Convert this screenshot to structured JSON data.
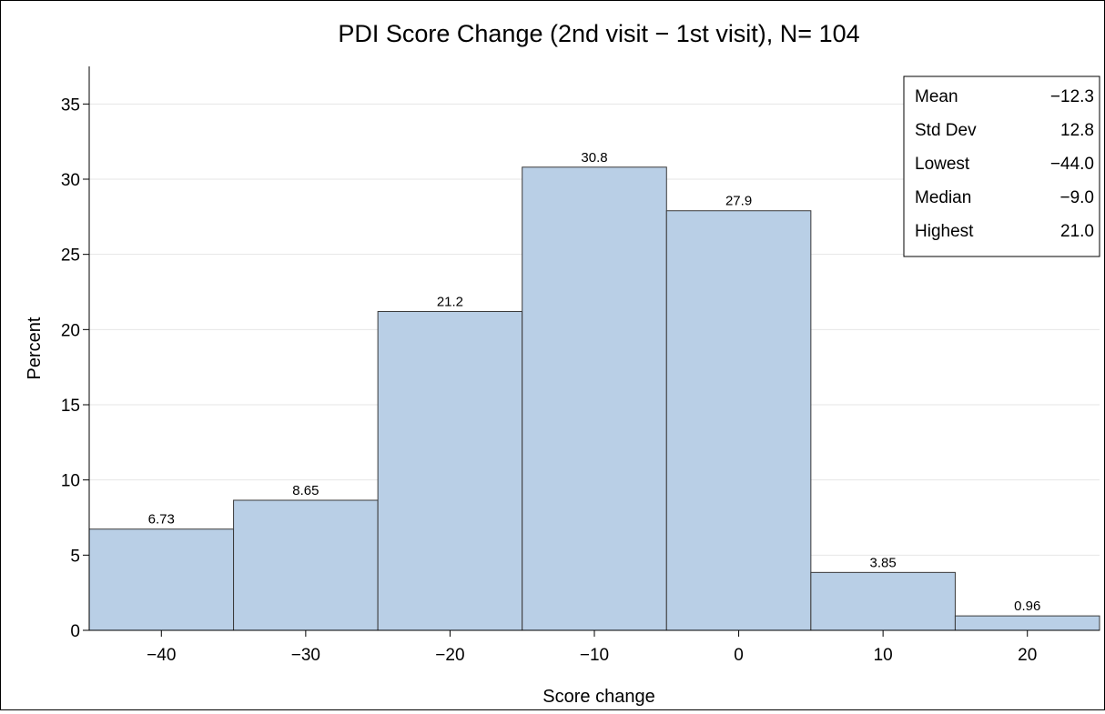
{
  "chart_data": {
    "type": "bar",
    "subtype": "histogram",
    "title": "PDI Score Change (2nd visit − 1st visit), N= 104",
    "xlabel": "Score change",
    "ylabel": "Percent",
    "xlim": [
      -45,
      25
    ],
    "ylim": [
      0,
      37.5
    ],
    "bin_width": 10,
    "x_ticks": [
      -40,
      -30,
      -20,
      -10,
      0,
      10,
      20
    ],
    "x_tick_labels": [
      "−40",
      "−30",
      "−20",
      "−10",
      "0",
      "10",
      "20"
    ],
    "y_ticks": [
      0,
      5,
      10,
      15,
      20,
      25,
      30,
      35
    ],
    "y_tick_labels": [
      "0",
      "5",
      "10",
      "15",
      "20",
      "25",
      "30",
      "35"
    ],
    "grid": true,
    "bins": [
      {
        "center": -40,
        "value": 6.73,
        "label": "6.73"
      },
      {
        "center": -30,
        "value": 8.65,
        "label": "8.65"
      },
      {
        "center": -20,
        "value": 21.2,
        "label": "21.2"
      },
      {
        "center": -10,
        "value": 30.8,
        "label": "30.8"
      },
      {
        "center": 0,
        "value": 27.9,
        "label": "27.9"
      },
      {
        "center": 10,
        "value": 3.85,
        "label": "3.85"
      },
      {
        "center": 20,
        "value": 0.96,
        "label": "0.96"
      }
    ],
    "bar_color": "#b9cfe6",
    "bar_edge_color": "#3a3a3a",
    "stats_box": {
      "placement": "top-right",
      "rows": [
        {
          "label": "Mean",
          "value": "−12.3"
        },
        {
          "label": "Std Dev",
          "value": "12.8"
        },
        {
          "label": "Lowest",
          "value": "−44.0"
        },
        {
          "label": "Median",
          "value": "−9.0"
        },
        {
          "label": "Highest",
          "value": "21.0"
        }
      ]
    }
  }
}
